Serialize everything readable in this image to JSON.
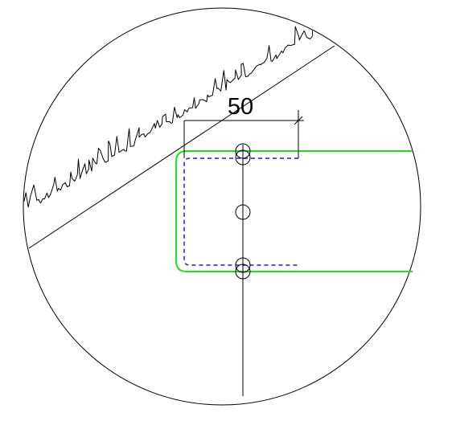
{
  "drawing": {
    "dimension_label": "50",
    "colors": {
      "outline": "#000000",
      "green_section": "#22dd22",
      "blue_dashed": "#1a1adc",
      "background": "#ffffff"
    }
  }
}
